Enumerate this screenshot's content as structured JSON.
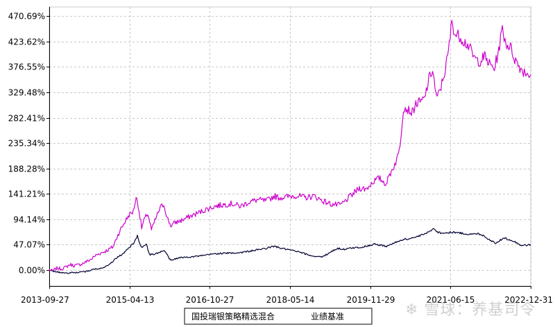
{
  "chart_data": {
    "type": "line",
    "y_tick_labels": [
      "0.00%",
      "47.07%",
      "94.14%",
      "141.21%",
      "188.28%",
      "235.34%",
      "282.41%",
      "329.48%",
      "376.55%",
      "423.62%",
      "470.69%"
    ],
    "y_ticks": [
      0,
      47.07,
      94.14,
      141.21,
      188.28,
      235.34,
      282.41,
      329.48,
      376.55,
      423.62,
      470.69
    ],
    "ylim": [
      -30,
      488
    ],
    "x_tick_labels": [
      "2013-09-27",
      "2015-04-13",
      "2016-10-27",
      "2018-05-14",
      "2019-11-29",
      "2021-06-15",
      "2022-12-31"
    ],
    "xlim": [
      "2013-09-27",
      "2022-12-31"
    ],
    "grid": true,
    "legend_position": "bottom",
    "series": [
      {
        "name": "国投瑞银策略精选混合",
        "color": "#CC00CC",
        "points": [
          [
            "2013-09-27",
            0
          ],
          [
            "2013-10-20",
            -2
          ],
          [
            "2013-11-20",
            3
          ],
          [
            "2013-12-20",
            2
          ],
          [
            "2014-01-20",
            5
          ],
          [
            "2014-02-20",
            10
          ],
          [
            "2014-03-20",
            8
          ],
          [
            "2014-04-20",
            9
          ],
          [
            "2014-05-20",
            12
          ],
          [
            "2014-06-20",
            16
          ],
          [
            "2014-07-20",
            20
          ],
          [
            "2014-08-20",
            27
          ],
          [
            "2014-09-20",
            31
          ],
          [
            "2014-10-20",
            34
          ],
          [
            "2014-11-20",
            38
          ],
          [
            "2014-12-20",
            43
          ],
          [
            "2015-01-10",
            58
          ],
          [
            "2015-02-10",
            75
          ],
          [
            "2015-03-10",
            88
          ],
          [
            "2015-04-10",
            102
          ],
          [
            "2015-05-10",
            108
          ],
          [
            "2015-05-30",
            135
          ],
          [
            "2015-06-15",
            118
          ],
          [
            "2015-07-08",
            78
          ],
          [
            "2015-07-25",
            92
          ],
          [
            "2015-08-20",
            105
          ],
          [
            "2015-09-15",
            74
          ],
          [
            "2015-10-15",
            95
          ],
          [
            "2015-11-15",
            115
          ],
          [
            "2015-12-10",
            122
          ],
          [
            "2016-01-05",
            96
          ],
          [
            "2016-01-28",
            82
          ],
          [
            "2016-03-01",
            88
          ],
          [
            "2016-04-15",
            92
          ],
          [
            "2016-06-01",
            98
          ],
          [
            "2016-08-01",
            105
          ],
          [
            "2016-10-01",
            112
          ],
          [
            "2016-12-01",
            118
          ],
          [
            "2017-02-01",
            121
          ],
          [
            "2017-04-01",
            123
          ],
          [
            "2017-06-01",
            118
          ],
          [
            "2017-08-01",
            126
          ],
          [
            "2017-10-01",
            130
          ],
          [
            "2017-12-01",
            128
          ],
          [
            "2018-01-25",
            137
          ],
          [
            "2018-03-01",
            134
          ],
          [
            "2018-05-01",
            136
          ],
          [
            "2018-07-01",
            138
          ],
          [
            "2018-09-01",
            134
          ],
          [
            "2018-11-01",
            137
          ],
          [
            "2019-01-01",
            128
          ],
          [
            "2019-03-01",
            122
          ],
          [
            "2019-05-01",
            120
          ],
          [
            "2019-06-01",
            126
          ],
          [
            "2019-07-01",
            134
          ],
          [
            "2019-08-01",
            141
          ],
          [
            "2019-09-15",
            152
          ],
          [
            "2019-11-01",
            150
          ],
          [
            "2019-12-20",
            164
          ],
          [
            "2020-02-01",
            170
          ],
          [
            "2020-03-20",
            160
          ],
          [
            "2020-04-20",
            180
          ],
          [
            "2020-05-20",
            196
          ],
          [
            "2020-06-15",
            214
          ],
          [
            "2020-07-01",
            245
          ],
          [
            "2020-07-20",
            302
          ],
          [
            "2020-08-20",
            298
          ],
          [
            "2020-09-20",
            292
          ],
          [
            "2020-10-15",
            308
          ],
          [
            "2020-11-20",
            312
          ],
          [
            "2020-12-15",
            318
          ],
          [
            "2021-01-15",
            354
          ],
          [
            "2021-02-10",
            372
          ],
          [
            "2021-03-10",
            316
          ],
          [
            "2021-04-10",
            340
          ],
          [
            "2021-05-10",
            372
          ],
          [
            "2021-06-01",
            405
          ],
          [
            "2021-06-25",
            462
          ],
          [
            "2021-07-20",
            436
          ],
          [
            "2021-08-20",
            434
          ],
          [
            "2021-09-20",
            424
          ],
          [
            "2021-10-20",
            416
          ],
          [
            "2021-11-20",
            398
          ],
          [
            "2021-12-10",
            390
          ],
          [
            "2022-01-10",
            388
          ],
          [
            "2022-02-10",
            396
          ],
          [
            "2022-03-15",
            382
          ],
          [
            "2022-04-20",
            374
          ],
          [
            "2022-05-20",
            408
          ],
          [
            "2022-06-15",
            448
          ],
          [
            "2022-07-10",
            420
          ],
          [
            "2022-08-10",
            414
          ],
          [
            "2022-09-10",
            392
          ],
          [
            "2022-10-10",
            378
          ],
          [
            "2022-11-10",
            369
          ],
          [
            "2022-12-31",
            362
          ]
        ]
      },
      {
        "name": "业绩基准",
        "color": "#000033",
        "points": [
          [
            "2013-09-27",
            0
          ],
          [
            "2013-11-01",
            -3
          ],
          [
            "2013-12-15",
            -5
          ],
          [
            "2014-02-01",
            -6
          ],
          [
            "2014-04-01",
            -5
          ],
          [
            "2014-06-01",
            -4
          ],
          [
            "2014-08-01",
            1
          ],
          [
            "2014-10-01",
            3
          ],
          [
            "2014-12-01",
            12
          ],
          [
            "2015-01-20",
            24
          ],
          [
            "2015-03-01",
            30
          ],
          [
            "2015-04-13",
            42
          ],
          [
            "2015-05-15",
            50
          ],
          [
            "2015-06-08",
            63
          ],
          [
            "2015-07-05",
            42
          ],
          [
            "2015-08-10",
            48
          ],
          [
            "2015-09-01",
            28
          ],
          [
            "2015-10-15",
            30
          ],
          [
            "2015-12-15",
            36
          ],
          [
            "2016-01-28",
            17
          ],
          [
            "2016-03-15",
            22
          ],
          [
            "2016-06-01",
            24
          ],
          [
            "2016-09-01",
            26
          ],
          [
            "2016-12-01",
            30
          ],
          [
            "2017-03-01",
            31
          ],
          [
            "2017-06-01",
            32
          ],
          [
            "2017-09-01",
            36
          ],
          [
            "2017-12-01",
            40
          ],
          [
            "2018-01-25",
            44
          ],
          [
            "2018-03-15",
            40
          ],
          [
            "2018-06-01",
            36
          ],
          [
            "2018-08-01",
            32
          ],
          [
            "2018-10-15",
            26
          ],
          [
            "2018-12-31",
            24
          ],
          [
            "2019-02-15",
            32
          ],
          [
            "2019-04-15",
            40
          ],
          [
            "2019-06-01",
            38
          ],
          [
            "2019-08-01",
            41
          ],
          [
            "2019-10-01",
            42
          ],
          [
            "2019-12-31",
            48
          ],
          [
            "2020-02-01",
            46
          ],
          [
            "2020-03-23",
            44
          ],
          [
            "2020-05-01",
            48
          ],
          [
            "2020-07-10",
            56
          ],
          [
            "2020-09-01",
            58
          ],
          [
            "2020-11-01",
            62
          ],
          [
            "2021-01-15",
            70
          ],
          [
            "2021-02-18",
            78
          ],
          [
            "2021-03-15",
            70
          ],
          [
            "2021-05-01",
            68
          ],
          [
            "2021-07-01",
            70
          ],
          [
            "2021-09-01",
            68
          ],
          [
            "2021-11-01",
            66
          ],
          [
            "2021-12-31",
            67
          ],
          [
            "2022-02-01",
            64
          ],
          [
            "2022-03-15",
            56
          ],
          [
            "2022-04-26",
            50
          ],
          [
            "2022-06-30",
            59
          ],
          [
            "2022-08-20",
            55
          ],
          [
            "2022-10-31",
            45
          ],
          [
            "2022-12-31",
            47
          ]
        ]
      }
    ]
  }
}
